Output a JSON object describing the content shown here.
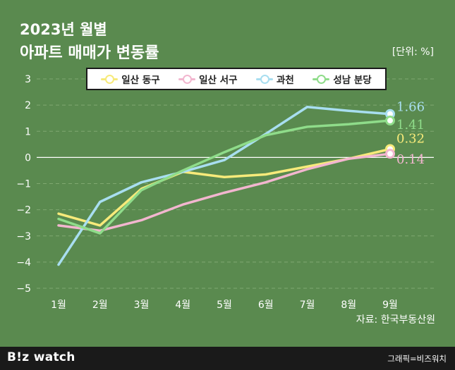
{
  "header": {
    "title_line1": "2023년 월별",
    "title_line2": "아파트 매매가 변동률",
    "unit": "[단위: %]"
  },
  "source": "자료: 한국부동산원",
  "footer": {
    "logo": "B!z watch",
    "credit": "그래픽=비즈워치"
  },
  "colors": {
    "background": "#5a8a4f",
    "grid": "#7fa871",
    "zero_line": "#ffffff"
  },
  "chart_data": {
    "type": "line",
    "categories": [
      "1월",
      "2월",
      "3월",
      "4월",
      "5월",
      "6월",
      "7월",
      "8월",
      "9월"
    ],
    "ylim": [
      -5,
      3
    ],
    "yticks": [
      3,
      2,
      1,
      0,
      -1,
      -2,
      -3,
      -4,
      -5
    ],
    "ytick_labels": [
      "3",
      "2",
      "1",
      "0",
      "−1",
      "−2",
      "−3",
      "−4",
      "−5"
    ],
    "grid": true,
    "legend_position": "top",
    "series": [
      {
        "name": "일산 동구",
        "color": "#f7ea7a",
        "values": [
          -2.15,
          -2.6,
          -1.2,
          -0.55,
          -0.75,
          -0.65,
          -0.35,
          -0.05,
          0.32
        ],
        "end_label": "0.32"
      },
      {
        "name": "일산 서구",
        "color": "#f2b6cf",
        "values": [
          -2.6,
          -2.8,
          -2.4,
          -1.8,
          -1.35,
          -0.95,
          -0.45,
          -0.05,
          0.14
        ],
        "end_label": "0.14"
      },
      {
        "name": "과천",
        "color": "#a8def0",
        "values": [
          -4.1,
          -1.7,
          -0.95,
          -0.55,
          -0.1,
          0.9,
          1.93,
          1.78,
          1.66
        ],
        "end_label": "1.66"
      },
      {
        "name": "성남 분당",
        "color": "#8fdc8a",
        "values": [
          -2.35,
          -2.9,
          -1.25,
          -0.5,
          0.2,
          0.85,
          1.17,
          1.27,
          1.41
        ],
        "end_label": "1.41"
      }
    ]
  }
}
